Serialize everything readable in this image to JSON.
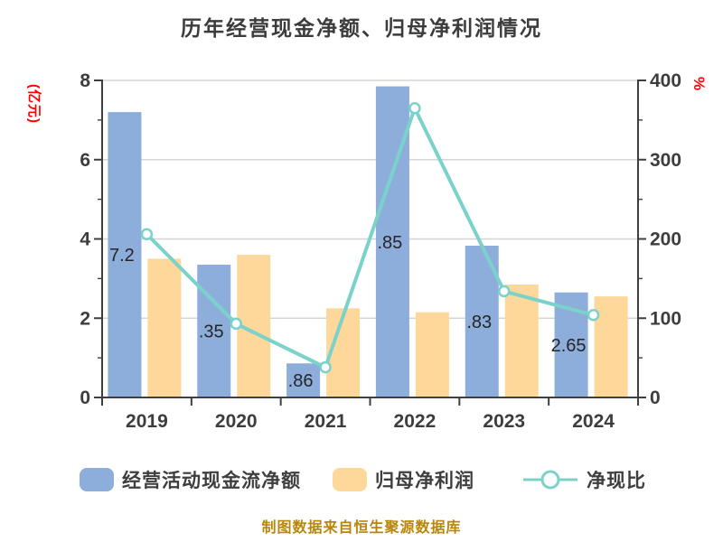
{
  "title": "历年经营现金净额、归母净利润情况",
  "footer": "制图数据来自恒生聚源数据库",
  "legend": [
    {
      "label": "经营活动现金流净额",
      "marker": "bar-swatch",
      "color": "#8daddb"
    },
    {
      "label": "归母净利润",
      "marker": "bar-swatch",
      "color": "#fdd89a"
    },
    {
      "label": "净现比",
      "marker": "line-marker",
      "color": "#7bd2ca"
    }
  ],
  "chart_data": {
    "type": "combo-bar-line",
    "title": "历年经营现金净额、归母净利润情况",
    "categories": [
      "2019",
      "2020",
      "2021",
      "2022",
      "2023",
      "2024"
    ],
    "series": [
      {
        "name": "经营活动现金流净额",
        "type": "bar",
        "axis": "left",
        "color": "#8daddb",
        "values": [
          7.2,
          3.35,
          0.86,
          7.85,
          3.83,
          2.65
        ],
        "visible_labels": [
          "7.2",
          ".35",
          ".86",
          ".85",
          ".83",
          "2.65"
        ]
      },
      {
        "name": "归母净利润",
        "type": "bar",
        "axis": "left",
        "color": "#fdd89a",
        "values": [
          3.5,
          3.6,
          2.25,
          2.15,
          2.85,
          2.55
        ]
      },
      {
        "name": "净现比",
        "type": "line",
        "axis": "right",
        "color": "#7bd2ca",
        "values": [
          206,
          93,
          38,
          365,
          134,
          104
        ]
      }
    ],
    "left_axis": {
      "label": "(亿元)",
      "min": 0,
      "max": 8,
      "ticks": [
        0,
        2,
        4,
        6,
        8
      ],
      "minor_ticks": [
        1,
        3,
        5,
        7
      ],
      "color": "#ff0000"
    },
    "right_axis": {
      "label": "%",
      "min": 0,
      "max": 400,
      "ticks": [
        0,
        100,
        200,
        300,
        400
      ],
      "minor_ticks": [
        50,
        150,
        250,
        350
      ],
      "color": "#ff0000"
    },
    "grid": true,
    "legend_position": "bottom"
  }
}
